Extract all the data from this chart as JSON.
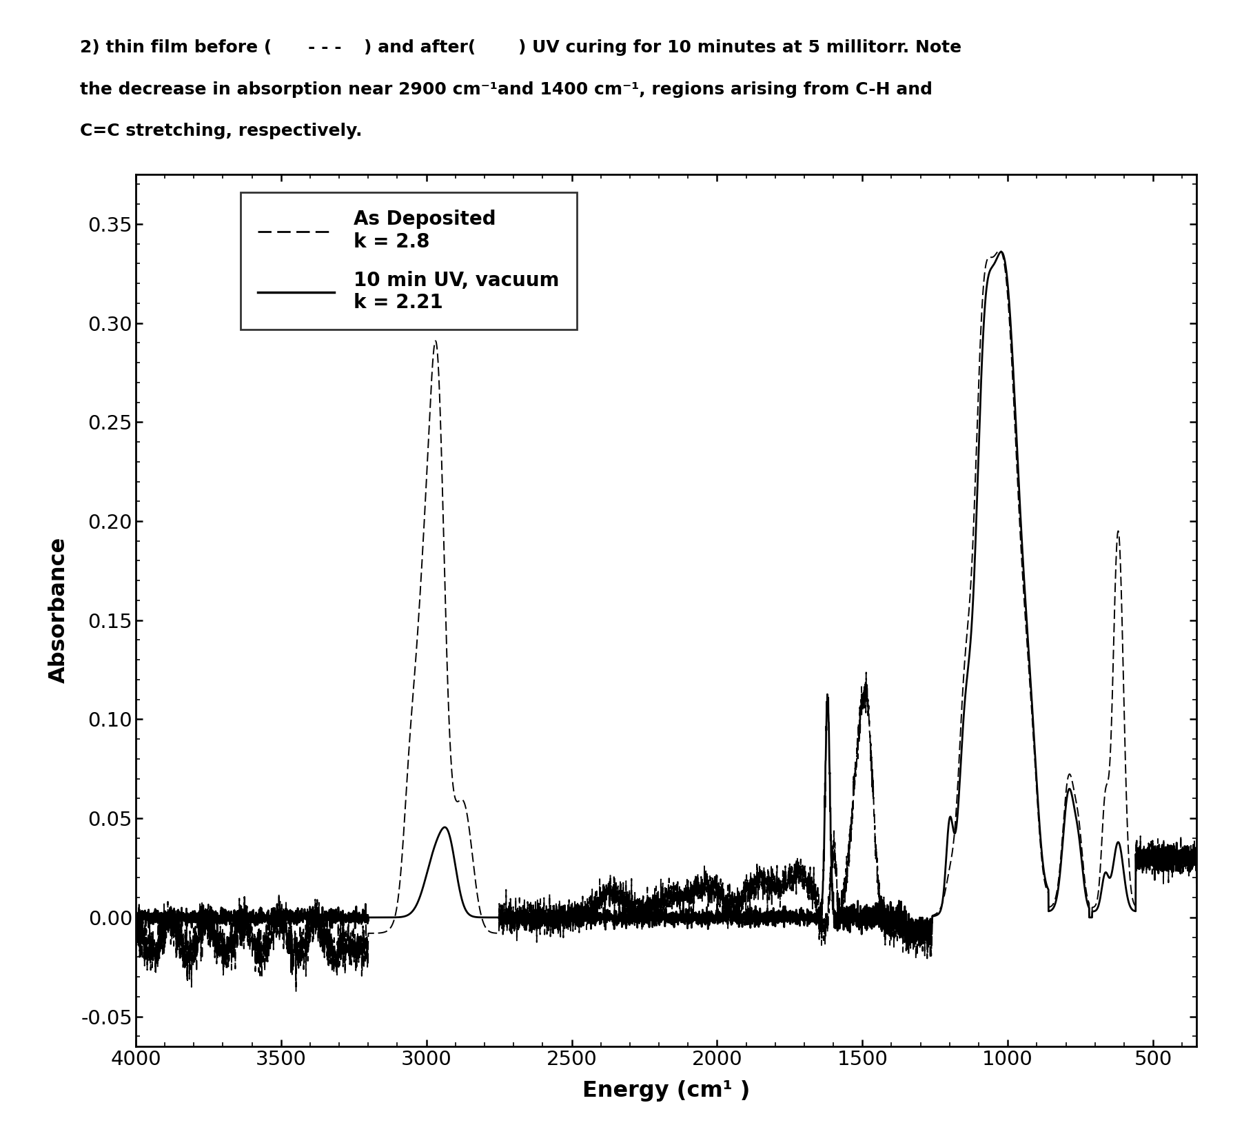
{
  "xlabel": "Energy (cm¹ )",
  "ylabel": "Absorbance",
  "xlim": [
    4000,
    350
  ],
  "ylim": [
    -0.065,
    0.375
  ],
  "yticks": [
    -0.05,
    0.0,
    0.05,
    0.1,
    0.15,
    0.2,
    0.25,
    0.3,
    0.35
  ],
  "xticks": [
    4000,
    3500,
    3000,
    2500,
    2000,
    1500,
    1000,
    500
  ],
  "legend_label1": "As Deposited\nk = 2.8",
  "legend_label2": "10 min UV, vacuum\nk = 2.21",
  "background_color": "#ffffff",
  "title_line1": "2) thin film before (----) and after(    ) UV curing for 10 minutes at 5 millitorr. Note",
  "title_line2": "the decrease in absorption near 2900 cm⁻¹and 1400 cm⁻¹, regions arising from C-H and",
  "title_line3": "C=C stretching, respectively."
}
